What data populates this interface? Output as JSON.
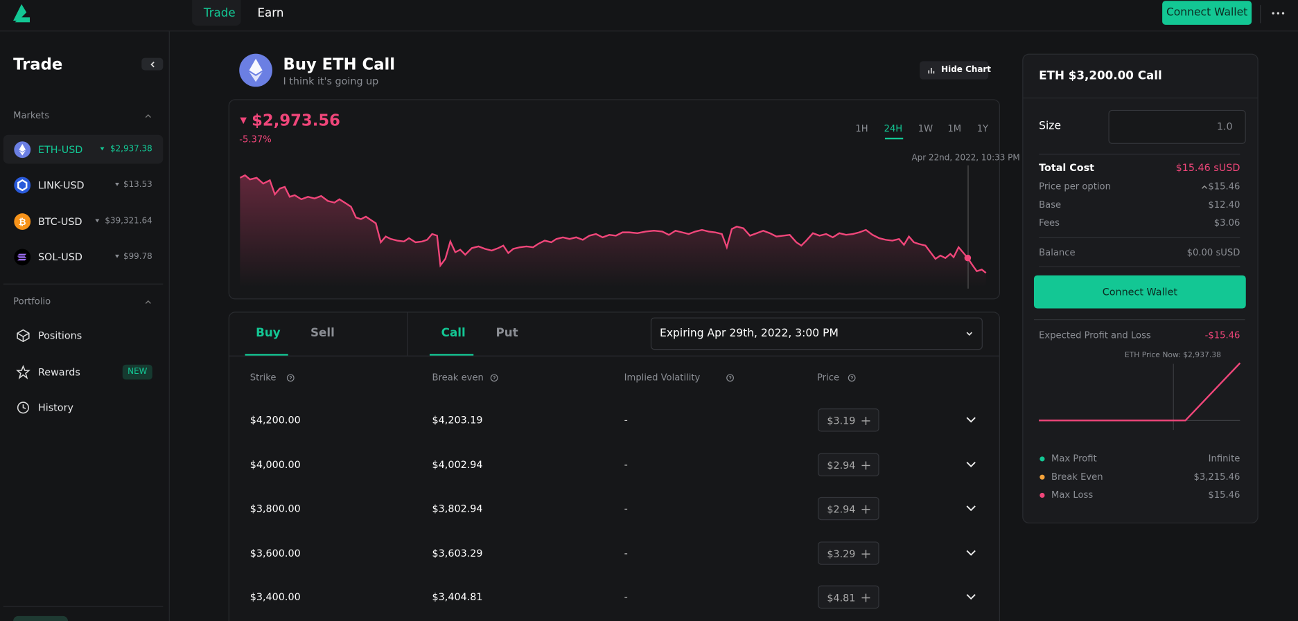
{
  "nav": {
    "tabs": [
      "Trade",
      "Earn"
    ],
    "connect_wallet": "Connect Wallet"
  },
  "sidebar": {
    "title": "Trade",
    "markets_label": "Markets",
    "markets": [
      {
        "symbol": "ETH-USD",
        "price": "$2,937.38"
      },
      {
        "symbol": "LINK-USD",
        "price": "$13.53"
      },
      {
        "symbol": "BTC-USD",
        "price": "$39,321.64"
      },
      {
        "symbol": "SOL-USD",
        "price": "$99.78"
      }
    ],
    "portfolio_label": "Portfolio",
    "portfolio": [
      "Positions",
      "Rewards",
      "History"
    ],
    "badge": "NEW"
  },
  "header": {
    "title": "Buy ETH Call",
    "subtitle": "I think it's going up",
    "hide_chart": "Hide Chart"
  },
  "price_chart": {
    "price": "$2,973.56",
    "change": "-5.37%",
    "ranges": [
      "1H",
      "24H",
      "1W",
      "1M",
      "1Y"
    ],
    "tooltip": "Apr 22nd, 2022, 10:33 PM"
  },
  "options": {
    "sides": [
      "Buy",
      "Sell"
    ],
    "kinds": [
      "Call",
      "Put"
    ],
    "expiry": "Expiring Apr 29th, 2022, 3:00 PM",
    "columns": [
      "Strike",
      "Break even",
      "Implied Volatility",
      "Price"
    ],
    "rows": [
      [
        "$4,200.00",
        "$4,203.19",
        "-",
        "$3.19"
      ],
      [
        "$4,000.00",
        "$4,002.94",
        "-",
        "$2.94"
      ],
      [
        "$3,800.00",
        "$3,802.94",
        "-",
        "$2.94"
      ],
      [
        "$3,600.00",
        "$3,603.29",
        "-",
        "$3.29"
      ],
      [
        "$3,400.00",
        "$3,404.81",
        "-",
        "$4.81"
      ]
    ]
  },
  "order": {
    "title": "ETH $3,200.00 Call",
    "size_label": "Size",
    "size": "1.0",
    "rows": [
      [
        "Total Cost",
        "$15.46 sUSD"
      ],
      [
        "Price per option",
        "$15.46"
      ],
      [
        "Base",
        "$12.40"
      ],
      [
        "Fees",
        "$3.06"
      ]
    ],
    "balance": [
      "Balance",
      "$0.00 sUSD"
    ],
    "connect_wallet": "Connect Wallet",
    "pnl_label": "Expected Profit and Loss",
    "pnl_value": "-$15.46",
    "price_now": "ETH Price Now: $2,937.38",
    "legend": [
      [
        "Max Profit",
        "Infinite"
      ],
      [
        "Break Even",
        "$3,215.46"
      ],
      [
        "Max Loss",
        "$15.46"
      ]
    ]
  }
}
